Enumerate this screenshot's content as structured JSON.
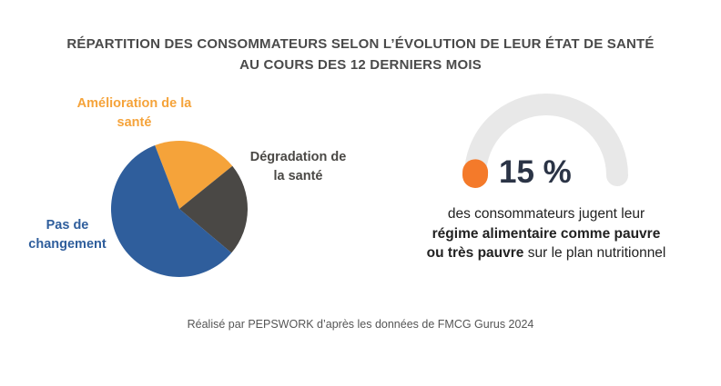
{
  "title": {
    "line1": "RÉPARTITION DES CONSOMMATEURS SELON L’ÉVOLUTION DE LEUR ÉTAT DE SANTÉ",
    "line2": "AU COURS DES 12 DERNIERS MOIS"
  },
  "chart_data": {
    "type": "pie",
    "slices": [
      {
        "label_lines": [
          "Amélioration de la",
          "santé"
        ],
        "value": 20,
        "color": "#f5a33a"
      },
      {
        "label_lines": [
          "Dégradation de",
          "la santé"
        ],
        "value": 22,
        "color": "#4a4845"
      },
      {
        "label_lines": [
          "Pas de",
          "changement"
        ],
        "value": 58,
        "color": "#2f5e9c"
      }
    ]
  },
  "stat": {
    "value": "15 %",
    "fraction": 0.15,
    "gauge_track_color": "#e8e8e8",
    "gauge_fill_color": "#f47a2a",
    "line1": "des consommateurs jugent leur",
    "line2": "régime alimentaire comme pauvre",
    "line3_bold": "ou très pauvre",
    "line3_rest": " sur le plan nutritionnel"
  },
  "source": "Réalisé par PEPSWORK d’après les données de FMCG Gurus 2024"
}
